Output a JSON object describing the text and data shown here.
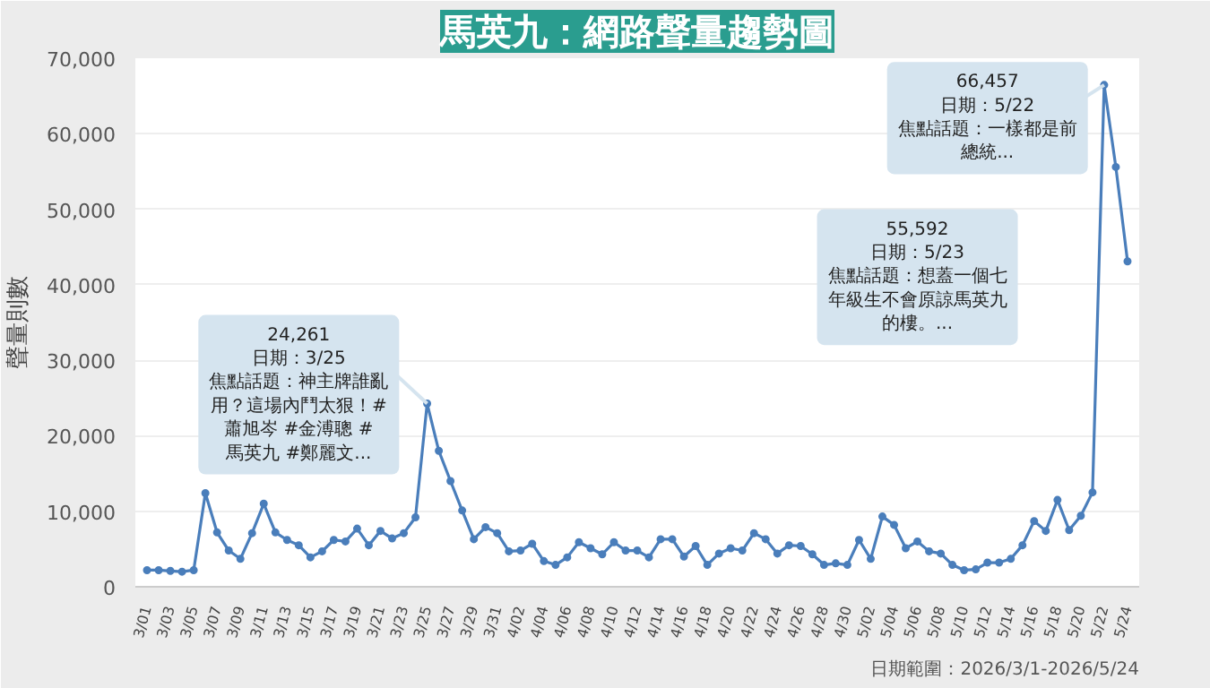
{
  "chart_data": {
    "type": "line",
    "title": "馬英九：網路聲量趨勢圖",
    "ylabel": "聲量則數",
    "categories": [
      "3/01",
      null,
      "3/03",
      null,
      "3/05",
      null,
      "3/07",
      null,
      "3/09",
      null,
      "3/11",
      null,
      "3/13",
      null,
      "3/15",
      null,
      "3/17",
      null,
      "3/19",
      null,
      "3/21",
      null,
      "3/23",
      null,
      "3/25",
      null,
      "3/27",
      null,
      "3/29",
      null,
      "3/31",
      null,
      "4/02",
      null,
      "4/04",
      null,
      "4/06",
      null,
      "4/08",
      null,
      "4/10",
      null,
      "4/12",
      null,
      "4/14",
      null,
      "4/16",
      null,
      "4/18",
      null,
      "4/20",
      null,
      "4/22",
      null,
      "4/24",
      null,
      "4/26",
      null,
      "4/28",
      null,
      "4/30",
      null,
      "5/02",
      null,
      "5/04",
      null,
      "5/06",
      null,
      "5/08",
      null,
      "5/10",
      null,
      "5/12",
      null,
      "5/14",
      null,
      "5/16",
      null,
      "5/18",
      null,
      "5/20",
      null,
      "5/22",
      null,
      "5/24"
    ],
    "series": [
      {
        "color": "#4a7ebb",
        "values": [
          2200,
          2200,
          2100,
          2000,
          2200,
          12400,
          7200,
          4800,
          3700,
          7100,
          11000,
          7200,
          6200,
          5500,
          3900,
          4700,
          6200,
          6000,
          7700,
          5500,
          7400,
          6400,
          7100,
          9200,
          24261,
          18000,
          14000,
          10100,
          6300,
          7900,
          7100,
          4700,
          4800,
          5700,
          3400,
          2900,
          3900,
          5900,
          5100,
          4300,
          5900,
          4800,
          4800,
          3900,
          6300,
          6300,
          4000,
          5400,
          2900,
          4400,
          5100,
          4800,
          7100,
          6300,
          4400,
          5500,
          5400,
          4300,
          2900,
          3100,
          2900,
          6200,
          3700,
          9300,
          8200,
          5100,
          6000,
          4700,
          4400,
          2900,
          2200,
          2300,
          3200,
          3200,
          3700,
          5500,
          8700,
          7400,
          11500,
          7500,
          9400,
          12500,
          66457,
          55592,
          43100
        ]
      }
    ],
    "ylim": [
      0,
      70000
    ],
    "yticks": [
      0,
      {
        "value": 10000,
        "label": "10,000"
      },
      {
        "value": 20000,
        "label": "20,000"
      },
      {
        "value": 30000,
        "label": "30,000"
      },
      {
        "value": 40000,
        "label": "40,000"
      },
      {
        "value": 50000,
        "label": "50,000"
      },
      {
        "value": 60000,
        "label": "60,000"
      },
      {
        "value": 70000,
        "label": "70,000"
      }
    ],
    "grid": "y",
    "marker": "circle",
    "line_style": "solid",
    "annotations": [
      {
        "text": "24,261\n日期：3/25\n焦點話題：神主牌誰亂用？這場內鬥太狠！#蕭旭岑 #金溥聰 #馬英九 #鄭麗文...",
        "x": "3/25",
        "y": 24261
      },
      {
        "text": "66,457\n日期：5/22\n焦點話題：一樣都是前總統...",
        "x": "5/22",
        "y": 66457
      },
      "55,592\n日期：5/23\n焦點話題：想蓋一個七年級生不會原諒馬英九的樓。...",
      "日期範圍：2026/3/1-2026/5/24"
    ]
  }
}
